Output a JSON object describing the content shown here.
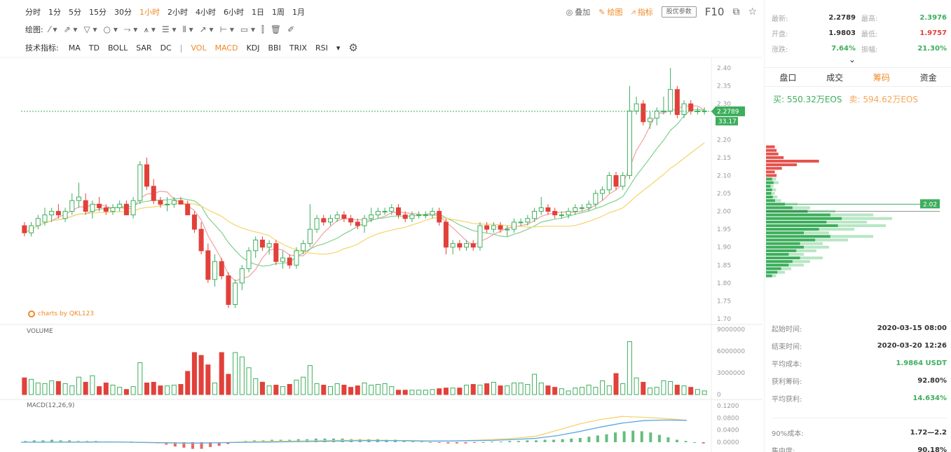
{
  "toolbar": {
    "intervals": [
      "分时",
      "1分",
      "5分",
      "15分",
      "30分",
      "1小时",
      "2小时",
      "4小时",
      "6小时",
      "1日",
      "1周",
      "1月"
    ],
    "active_interval": "1小时",
    "overlay_label": "叠加",
    "draw_label": "绘图",
    "indicator_label": "指标",
    "settings_label": "股优参数",
    "f10_label": "F10",
    "drawing_tools_label": "绘图:",
    "tech_label": "技术指标:",
    "main_indicators": [
      "MA",
      "TD",
      "BOLL",
      "SAR",
      "DC"
    ],
    "sub_indicators": [
      "VOL",
      "MACD",
      "KDJ",
      "BBI",
      "TRIX",
      "RSI"
    ],
    "active_sub_indicators": [
      "VOL",
      "MACD"
    ]
  },
  "colors": {
    "up": "#3dae5c",
    "down": "#e2403a",
    "accent": "#f08a24",
    "ma5": "#f2a0a0",
    "ma10": "#7fd08e",
    "ma20": "#f7d36c",
    "diff": "#f7d36c",
    "dea": "#5aa8e6"
  },
  "chart": {
    "watermark": "charts by QKL123",
    "price_axis": [
      "2.40",
      "2.35",
      "2.30",
      "2.25",
      "2.20",
      "2.15",
      "2.10",
      "2.05",
      "2.00",
      "1.95",
      "1.90",
      "1.85",
      "1.80",
      "1.75",
      "1.70"
    ],
    "current_price": "2.2789",
    "current_tag2": "33.17",
    "volume_title": "VOLUME",
    "volume_axis": [
      "9000000",
      "6000000",
      "3000000",
      "0"
    ],
    "macd_title": "MACD(12,26,9)",
    "macd_axis": [
      "0.1200",
      "0.0800",
      "0.0400",
      "0.0000"
    ],
    "chip_peak_label": "2.02"
  },
  "chart_data": {
    "type": "candlestick",
    "ylim": [
      1.7,
      2.4
    ],
    "candles": [
      [
        1.96,
        1.97,
        1.93,
        1.94
      ],
      [
        1.94,
        1.97,
        1.93,
        1.96
      ],
      [
        1.96,
        1.99,
        1.95,
        1.98
      ],
      [
        1.97,
        2.01,
        1.96,
        1.99
      ],
      [
        1.99,
        2.01,
        1.97,
        2.0
      ],
      [
        2.0,
        2.02,
        1.98,
        1.99
      ],
      [
        1.98,
        2.01,
        1.97,
        2.0
      ],
      [
        2.0,
        2.05,
        1.99,
        2.03
      ],
      [
        2.03,
        2.08,
        2.01,
        2.04
      ],
      [
        2.03,
        2.05,
        1.99,
        2.0
      ],
      [
        2.0,
        2.03,
        1.98,
        2.02
      ],
      [
        2.02,
        2.04,
        2.0,
        2.01
      ],
      [
        2.01,
        2.02,
        1.99,
        2.0
      ],
      [
        2.0,
        2.02,
        1.99,
        2.01
      ],
      [
        2.01,
        2.03,
        2.0,
        2.02
      ],
      [
        2.02,
        2.03,
        1.99,
        1.99
      ],
      [
        1.99,
        2.04,
        1.98,
        2.03
      ],
      [
        2.03,
        2.14,
        2.02,
        2.13
      ],
      [
        2.13,
        2.15,
        2.06,
        2.07
      ],
      [
        2.07,
        2.09,
        2.02,
        2.03
      ],
      [
        2.03,
        2.04,
        2.01,
        2.02
      ],
      [
        2.02,
        2.04,
        2.0,
        2.02
      ],
      [
        2.02,
        2.04,
        2.01,
        2.03
      ],
      [
        2.03,
        2.04,
        2.02,
        2.02
      ],
      [
        2.02,
        2.03,
        1.99,
        1.99
      ],
      [
        1.99,
        2.0,
        1.94,
        1.95
      ],
      [
        1.95,
        1.97,
        1.88,
        1.89
      ],
      [
        1.89,
        1.91,
        1.8,
        1.81
      ],
      [
        1.81,
        1.88,
        1.79,
        1.86
      ],
      [
        1.86,
        1.87,
        1.81,
        1.82
      ],
      [
        1.82,
        1.83,
        1.73,
        1.74
      ],
      [
        1.74,
        1.81,
        1.73,
        1.8
      ],
      [
        1.8,
        1.85,
        1.78,
        1.84
      ],
      [
        1.84,
        1.9,
        1.83,
        1.89
      ],
      [
        1.89,
        1.93,
        1.87,
        1.92
      ],
      [
        1.92,
        1.93,
        1.89,
        1.9
      ],
      [
        1.9,
        1.92,
        1.88,
        1.91
      ],
      [
        1.91,
        1.92,
        1.85,
        1.86
      ],
      [
        1.86,
        1.89,
        1.84,
        1.87
      ],
      [
        1.87,
        1.88,
        1.84,
        1.85
      ],
      [
        1.85,
        1.9,
        1.84,
        1.89
      ],
      [
        1.89,
        1.92,
        1.88,
        1.91
      ],
      [
        1.91,
        2.02,
        1.9,
        1.95
      ],
      [
        1.95,
        1.99,
        1.94,
        1.98
      ],
      [
        1.98,
        1.99,
        1.96,
        1.97
      ],
      [
        1.97,
        1.99,
        1.96,
        1.98
      ],
      [
        1.98,
        2.0,
        1.97,
        1.99
      ],
      [
        1.99,
        2.0,
        1.97,
        1.98
      ],
      [
        1.98,
        1.99,
        1.96,
        1.97
      ],
      [
        1.97,
        1.98,
        1.95,
        1.96
      ],
      [
        1.96,
        1.99,
        1.94,
        1.98
      ],
      [
        1.98,
        2.01,
        1.97,
        1.99
      ],
      [
        1.99,
        2.01,
        1.98,
        2.0
      ],
      [
        2.0,
        2.01,
        1.99,
        2.0
      ],
      [
        2.0,
        2.02,
        1.99,
        2.01
      ],
      [
        2.01,
        2.02,
        1.98,
        1.99
      ],
      [
        1.99,
        2.0,
        1.97,
        1.98
      ],
      [
        1.98,
        2.0,
        1.97,
        1.99
      ],
      [
        1.99,
        2.0,
        1.98,
        1.99
      ],
      [
        1.99,
        2.0,
        1.98,
        1.99
      ],
      [
        1.99,
        2.01,
        1.98,
        2.0
      ],
      [
        2.0,
        2.01,
        1.96,
        1.97
      ],
      [
        1.97,
        1.98,
        1.88,
        1.9
      ],
      [
        1.9,
        1.92,
        1.88,
        1.91
      ],
      [
        1.91,
        1.92,
        1.89,
        1.9
      ],
      [
        1.9,
        1.92,
        1.89,
        1.91
      ],
      [
        1.91,
        1.92,
        1.89,
        1.9
      ],
      [
        1.9,
        1.97,
        1.89,
        1.96
      ],
      [
        1.96,
        1.97,
        1.94,
        1.95
      ],
      [
        1.95,
        1.97,
        1.94,
        1.96
      ],
      [
        1.96,
        1.97,
        1.94,
        1.95
      ],
      [
        1.95,
        1.96,
        1.93,
        1.95
      ],
      [
        1.95,
        1.98,
        1.94,
        1.97
      ],
      [
        1.97,
        1.98,
        1.96,
        1.97
      ],
      [
        1.97,
        1.99,
        1.96,
        1.98
      ],
      [
        1.98,
        2.01,
        1.97,
        2.0
      ],
      [
        2.0,
        2.04,
        1.99,
        2.01
      ],
      [
        2.01,
        2.02,
        1.99,
        2.0
      ],
      [
        2.0,
        2.01,
        1.98,
        1.99
      ],
      [
        1.99,
        2.0,
        1.98,
        1.99
      ],
      [
        1.99,
        2.01,
        1.98,
        2.0
      ],
      [
        2.0,
        2.02,
        1.99,
        2.01
      ],
      [
        2.01,
        2.02,
        2.0,
        2.01
      ],
      [
        2.01,
        2.03,
        2.0,
        2.02
      ],
      [
        2.02,
        2.06,
        2.01,
        2.05
      ],
      [
        2.05,
        2.07,
        2.03,
        2.06
      ],
      [
        2.06,
        2.11,
        2.05,
        2.1
      ],
      [
        2.1,
        2.11,
        2.06,
        2.07
      ],
      [
        2.07,
        2.11,
        2.06,
        2.1
      ],
      [
        2.1,
        2.35,
        2.09,
        2.28
      ],
      [
        2.28,
        2.32,
        2.27,
        2.3
      ],
      [
        2.3,
        2.31,
        2.24,
        2.25
      ],
      [
        2.25,
        2.28,
        2.23,
        2.26
      ],
      [
        2.26,
        2.29,
        2.24,
        2.28
      ],
      [
        2.28,
        2.32,
        2.27,
        2.28
      ],
      [
        2.28,
        2.4,
        2.27,
        2.34
      ],
      [
        2.34,
        2.35,
        2.26,
        2.27
      ],
      [
        2.27,
        2.31,
        2.26,
        2.3
      ],
      [
        2.3,
        2.31,
        2.27,
        2.28
      ],
      [
        2.28,
        2.29,
        2.27,
        2.28
      ],
      [
        2.28,
        2.29,
        2.27,
        2.28
      ]
    ],
    "volume": [
      2.3,
      2.1,
      1.6,
      1.5,
      1.9,
      1.8,
      1.5,
      1.2,
      2.4,
      1.7,
      2.6,
      1.1,
      1.6,
      1.3,
      1.0,
      0.7,
      1.1,
      4.4,
      1.6,
      1.7,
      1.2,
      1.2,
      1.3,
      1.4,
      3.2,
      5.8,
      5.4,
      4.1,
      1.6,
      5.8,
      2.8,
      5.8,
      5.2,
      3.7,
      2.2,
      1.7,
      1.2,
      1.3,
      1.1,
      1.4,
      2.0,
      2.4,
      4.0,
      1.5,
      1.3,
      1.1,
      1.5,
      1.3,
      1.0,
      1.2,
      1.6,
      1.3,
      1.4,
      1.5,
      1.1,
      0.6,
      0.6,
      0.6,
      0.6,
      0.6,
      0.7,
      0.8,
      0.9,
      0.9,
      0.9,
      1.3,
      1.4,
      1.3,
      1.5,
      1.7,
      1.2,
      1.2,
      1.6,
      1.6,
      1.4,
      2.8,
      1.6,
      1.2,
      1.0,
      0.8,
      0.5,
      0.9,
      1.0,
      1.3,
      1.0,
      1.9,
      1.2,
      2.9,
      1.5,
      7.3,
      2.3,
      1.7,
      0.9,
      1.0,
      1.9,
      1.8,
      1.3,
      1.2,
      1.0,
      0.7,
      0.5
    ],
    "macd_hist": [
      0.002,
      0.003,
      0.003,
      0.004,
      0.003,
      0.003,
      0.002,
      0.002,
      0.002,
      0.001,
      0.001,
      0.001,
      0.001,
      0.0,
      -0.001,
      -0.002,
      -0.004,
      -0.007,
      -0.009,
      -0.011,
      -0.011,
      -0.008,
      -0.006,
      -0.003,
      0.0,
      0.002,
      0.003,
      0.003,
      0.004,
      0.004,
      0.004,
      0.005,
      0.005,
      0.006,
      0.006,
      0.006,
      0.006,
      0.005,
      0.005,
      0.005,
      0.005,
      0.004,
      0.004,
      0.003,
      0.002,
      0.001,
      0.0,
      -0.001,
      -0.002,
      -0.002,
      -0.002,
      -0.001,
      0.0,
      0.001,
      0.001,
      0.002,
      0.002,
      0.003,
      0.003,
      0.004,
      0.004,
      0.005,
      0.006,
      0.007,
      0.009,
      0.011,
      0.013,
      0.016,
      0.018,
      0.019,
      0.018,
      0.016,
      0.012,
      0.008,
      0.004,
      0.002,
      0.0,
      -0.002
    ],
    "macd_diff": [
      0.0,
      0.0,
      0.001,
      0.001,
      0.001,
      0.0,
      -0.002,
      -0.003,
      -0.004,
      -0.002,
      0.0,
      0.002,
      0.003,
      0.004,
      0.005,
      0.006,
      0.007,
      0.006,
      0.004,
      0.003,
      0.004,
      0.006,
      0.009,
      0.013,
      0.02,
      0.04,
      0.06,
      0.075,
      0.085,
      0.082,
      0.078,
      0.072
    ],
    "macd_dea": [
      0.0,
      0.0,
      0.0,
      0.0,
      0.001,
      0.0,
      -0.001,
      -0.002,
      -0.003,
      -0.002,
      -0.001,
      0.0,
      0.001,
      0.002,
      0.003,
      0.004,
      0.005,
      0.005,
      0.005,
      0.004,
      0.004,
      0.005,
      0.006,
      0.009,
      0.013,
      0.022,
      0.035,
      0.05,
      0.063,
      0.071,
      0.073,
      0.072
    ],
    "chip_dist": [
      [
        2.18,
        0.1,
        0.0
      ],
      [
        2.17,
        0.12,
        0.0
      ],
      [
        2.16,
        0.14,
        0.0
      ],
      [
        2.15,
        0.2,
        0.0
      ],
      [
        2.14,
        0.6,
        0.0
      ],
      [
        2.13,
        0.35,
        0.0
      ],
      [
        2.12,
        0.18,
        0.0
      ],
      [
        2.11,
        0.1,
        0.0
      ],
      [
        2.1,
        0.12,
        0.0
      ],
      [
        2.09,
        0.0,
        0.08
      ],
      [
        2.08,
        0.0,
        0.1
      ],
      [
        2.07,
        0.0,
        0.06
      ],
      [
        2.06,
        0.0,
        0.08
      ],
      [
        2.05,
        0.0,
        0.07
      ],
      [
        2.04,
        0.0,
        0.09
      ],
      [
        2.03,
        0.0,
        0.12
      ],
      [
        2.02,
        0.0,
        0.25
      ],
      [
        2.01,
        0.0,
        0.35
      ],
      [
        2.0,
        0.0,
        0.55
      ],
      [
        1.99,
        0.0,
        0.85
      ],
      [
        1.98,
        0.0,
        1.0
      ],
      [
        1.97,
        0.0,
        0.8
      ],
      [
        1.96,
        0.0,
        0.95
      ],
      [
        1.95,
        0.0,
        0.7
      ],
      [
        1.94,
        0.0,
        0.5
      ],
      [
        1.93,
        0.0,
        0.85
      ],
      [
        1.92,
        0.0,
        0.65
      ],
      [
        1.91,
        0.0,
        0.45
      ],
      [
        1.9,
        0.0,
        0.5
      ],
      [
        1.89,
        0.0,
        0.4
      ],
      [
        1.88,
        0.0,
        0.3
      ],
      [
        1.87,
        0.0,
        0.45
      ],
      [
        1.86,
        0.0,
        0.35
      ],
      [
        1.85,
        0.0,
        0.3
      ],
      [
        1.84,
        0.0,
        0.2
      ],
      [
        1.83,
        0.0,
        0.15
      ],
      [
        1.82,
        0.0,
        0.08
      ]
    ]
  },
  "stats": {
    "latest_label": "最新:",
    "latest": "2.2789",
    "high_label": "最高:",
    "high": "2.3976",
    "open_label": "开盘:",
    "open": "1.9803",
    "low_label": "最低:",
    "low": "1.9757",
    "change_label": "涨跌:",
    "change": "7.64%",
    "amplitude_label": "振幅:",
    "amplitude": "21.30%"
  },
  "tabs": [
    "盘口",
    "成交",
    "筹码",
    "资金"
  ],
  "active_tab": "筹码",
  "buysell": {
    "buy": "买: 550.32万EOS",
    "sell": "卖: 594.62万EOS"
  },
  "info": {
    "start_label": "起始时间:",
    "start": "2020-03-15 08:00",
    "end_label": "结束时间:",
    "end": "2020-03-20 12:26",
    "avg_cost_label": "平均成本:",
    "avg_cost": "1.9864 USDT",
    "profit_chip_label": "获利筹码:",
    "profit_chip": "92.80%",
    "avg_profit_label": "平均获利:",
    "avg_profit": "14.634%",
    "cost90_label": "90%成本:",
    "cost90": "1.72—2.2",
    "concentration_label": "集中度:",
    "concentration": "90.18%"
  }
}
